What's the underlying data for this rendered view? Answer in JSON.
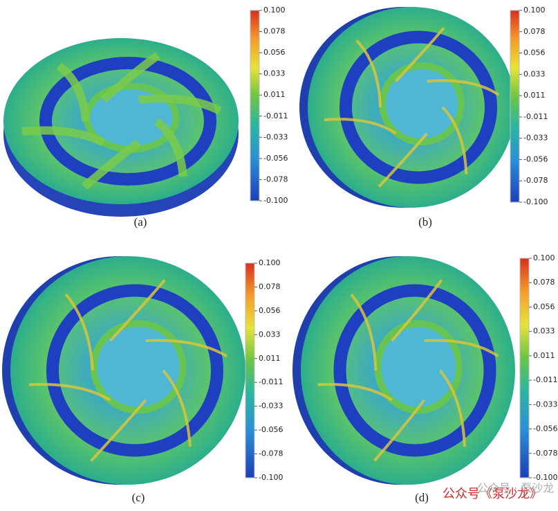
{
  "panels": [
    {
      "label": "(a)",
      "colorbar_ticks": [
        "0.100",
        "0.078",
        "0.056",
        "0.033",
        "0.011",
        "-0.011",
        "-0.033",
        "-0.056",
        "-0.078",
        "-0.100"
      ]
    },
    {
      "label": "(b)",
      "colorbar_ticks": [
        "0.100",
        "0.078",
        "0.056",
        "0.033",
        "0.011",
        "-0.011",
        "-0.033",
        "-0.056",
        "-0.078",
        "-0.100"
      ]
    },
    {
      "label": "(c)",
      "colorbar_ticks": [
        "0.100",
        "0.078",
        "0.056",
        "0.033",
        "0.011",
        "-0.011",
        "-0.033",
        "-0.056",
        "-0.078",
        "-0.100"
      ]
    },
    {
      "label": "(d)",
      "colorbar_ticks": [
        "0.100",
        "0.078",
        "0.056",
        "0.033",
        "0.011",
        "-0.011",
        "-0.033",
        "-0.056",
        "-0.078",
        "-0.100"
      ]
    }
  ],
  "watermark": {
    "red": "公众号《泵沙龙》",
    "gray": "公众号 · 泵沙龙"
  }
}
